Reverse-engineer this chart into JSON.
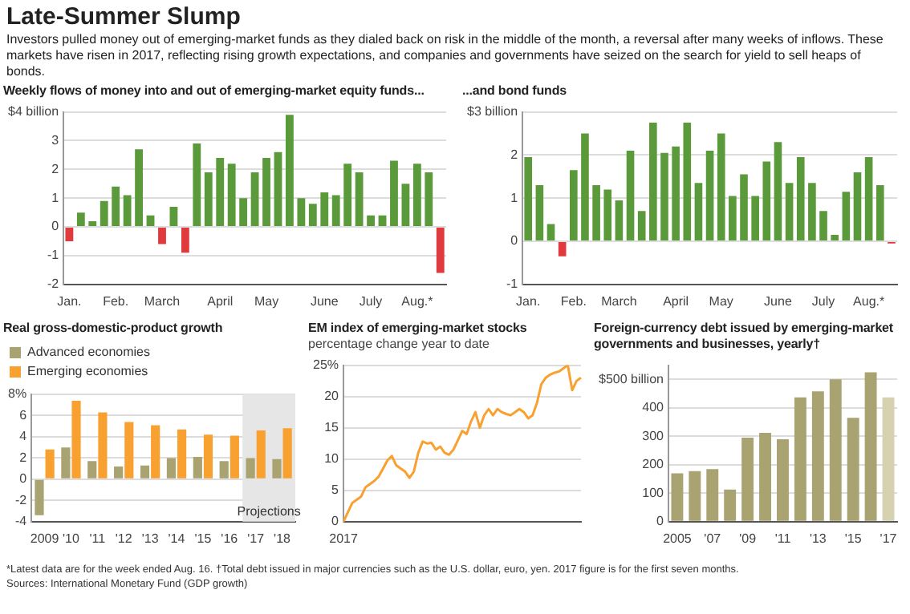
{
  "chart_data": [
    {
      "type": "other",
      "title": "Late-Summer Slump",
      "subtitle": "Investors pulled money out of emerging-market funds as they dialed back on risk in the middle of the month, a reversal after many weeks of inflows. These markets have risen in 2017, reflecting rising growth expectations, and companies and governments have seized on the search for yield to sell heaps of bonds.",
      "annotations": [
        "*Latest data are for the week ended Aug. 16.   †Total debt issued in major currencies such as the U.S. dollar, euro, yen. 2017 figure is for the first seven months.",
        "Sources: International Monetary Fund (GDP growth)"
      ]
    },
    {
      "type": "bar",
      "title": "Weekly flows of money into and out of emerging-market equity funds...",
      "categories": [
        "Jan.",
        null,
        null,
        null,
        "Feb.",
        null,
        null,
        null,
        "March",
        null,
        null,
        null,
        null,
        "April",
        null,
        null,
        null,
        "May",
        null,
        null,
        null,
        null,
        "June",
        null,
        null,
        null,
        "July",
        null,
        null,
        null,
        "Aug.*",
        null,
        null
      ],
      "values": [
        -0.5,
        0.5,
        0.2,
        0.9,
        1.4,
        1.1,
        2.7,
        0.4,
        -0.6,
        0.7,
        -0.9,
        2.9,
        1.9,
        2.4,
        2.2,
        1.0,
        1.9,
        2.4,
        2.6,
        3.9,
        1.0,
        0.8,
        1.2,
        1.1,
        2.2,
        1.9,
        0.4,
        0.4,
        2.3,
        1.5,
        2.2,
        1.9,
        -1.6
      ],
      "colors": [
        "#e0393e",
        "#5b9a3a",
        "#5b9a3a",
        "#5b9a3a",
        "#5b9a3a",
        "#5b9a3a",
        "#5b9a3a",
        "#5b9a3a",
        "#e0393e",
        "#5b9a3a",
        "#e0393e",
        "#5b9a3a",
        "#5b9a3a",
        "#5b9a3a",
        "#5b9a3a",
        "#5b9a3a",
        "#5b9a3a",
        "#5b9a3a",
        "#5b9a3a",
        "#5b9a3a",
        "#5b9a3a",
        "#5b9a3a",
        "#5b9a3a",
        "#5b9a3a",
        "#5b9a3a",
        "#5b9a3a",
        "#5b9a3a",
        "#5b9a3a",
        "#5b9a3a",
        "#5b9a3a",
        "#5b9a3a",
        "#5b9a3a",
        "#e0393e"
      ],
      "ylim": [
        -2,
        4
      ],
      "yticks": [
        -2,
        -1,
        0,
        1,
        2,
        3,
        {
          "value": 4,
          "label": "$4 billion"
        }
      ],
      "grid": "y"
    },
    {
      "type": "bar",
      "title": "...and bond funds",
      "categories": [
        "Jan.",
        null,
        null,
        null,
        "Feb.",
        null,
        null,
        null,
        "March",
        null,
        null,
        null,
        null,
        "April",
        null,
        null,
        null,
        "May",
        null,
        null,
        null,
        null,
        "June",
        null,
        null,
        null,
        "July",
        null,
        null,
        null,
        "Aug.*",
        null,
        null
      ],
      "values": [
        1.95,
        1.3,
        0.4,
        -0.35,
        1.65,
        2.5,
        1.3,
        1.2,
        0.95,
        2.1,
        0.7,
        2.75,
        2.05,
        2.2,
        2.75,
        1.35,
        2.1,
        2.5,
        1.05,
        1.55,
        1.05,
        1.85,
        2.3,
        1.35,
        1.95,
        1.35,
        0.7,
        0.15,
        1.15,
        1.6,
        1.95,
        1.3,
        -0.05
      ],
      "colors": [
        "#5b9a3a",
        "#5b9a3a",
        "#5b9a3a",
        "#e0393e",
        "#5b9a3a",
        "#5b9a3a",
        "#5b9a3a",
        "#5b9a3a",
        "#5b9a3a",
        "#5b9a3a",
        "#5b9a3a",
        "#5b9a3a",
        "#5b9a3a",
        "#5b9a3a",
        "#5b9a3a",
        "#5b9a3a",
        "#5b9a3a",
        "#5b9a3a",
        "#5b9a3a",
        "#5b9a3a",
        "#5b9a3a",
        "#5b9a3a",
        "#5b9a3a",
        "#5b9a3a",
        "#5b9a3a",
        "#5b9a3a",
        "#5b9a3a",
        "#5b9a3a",
        "#5b9a3a",
        "#5b9a3a",
        "#5b9a3a",
        "#5b9a3a",
        "#e0393e"
      ],
      "ylim": [
        -1,
        3
      ],
      "yticks": [
        -1,
        0,
        1,
        2,
        {
          "value": 3,
          "label": "$3 billion"
        }
      ],
      "grid": "y"
    },
    {
      "type": "bar",
      "title": "Real gross-domestic-product growth",
      "categories": [
        "2009",
        "'10",
        "'11",
        "'12",
        "'13",
        "'14",
        "'15",
        "'16",
        "'17",
        "'18"
      ],
      "series": [
        {
          "name": "Advanced economies",
          "color": "#a9a271",
          "values": [
            -3.4,
            3.0,
            1.7,
            1.2,
            1.3,
            2.0,
            2.1,
            1.7,
            2.0,
            1.9
          ]
        },
        {
          "name": "Emerging economies",
          "color": "#f8a131",
          "values": [
            2.8,
            7.4,
            6.3,
            5.4,
            5.1,
            4.7,
            4.2,
            4.1,
            4.6,
            4.8
          ]
        }
      ],
      "ylim": [
        -4,
        8
      ],
      "yticks": [
        -4,
        -2,
        0,
        2,
        4,
        6,
        {
          "value": 8,
          "label": "8%"
        }
      ],
      "grid": "y",
      "legend": "top left",
      "bands": [
        {
          "axis": "x",
          "from": "'17",
          "to": "'18",
          "label": "Projections",
          "color": "#e6e6e6"
        }
      ]
    },
    {
      "type": "line",
      "title": "EM index of emerging-market stocks",
      "subtitle": "percentage change year to date",
      "categories": [
        "2017",
        null,
        null,
        null,
        null,
        null,
        null,
        null,
        null,
        null,
        null,
        null,
        null,
        null,
        null,
        null,
        null,
        null,
        null,
        null,
        null,
        null,
        null,
        null,
        null,
        null,
        null,
        null,
        null,
        null,
        null,
        null,
        null,
        null,
        null,
        null,
        null,
        null,
        null,
        null,
        null,
        null,
        null,
        null,
        null,
        null,
        null,
        null,
        null,
        null,
        null,
        null,
        null,
        null,
        null
      ],
      "series": [
        {
          "color": "#f8a131",
          "values": [
            0,
            1.5,
            3,
            3.5,
            4,
            5.5,
            6,
            6.5,
            7.2,
            8.5,
            9.8,
            10.5,
            9,
            8.5,
            8,
            7,
            8,
            11,
            12.8,
            12.5,
            12.6,
            11.5,
            12,
            11,
            10.7,
            11.5,
            13,
            14.5,
            14,
            16,
            17.5,
            15,
            17,
            18,
            17,
            18,
            17.5,
            17.2,
            17,
            17.5,
            18,
            17.5,
            16.5,
            17,
            19,
            22,
            23,
            23.5,
            23.8,
            24,
            24.5,
            25,
            21,
            22.5,
            23
          ]
        }
      ],
      "ylim": [
        0,
        25
      ],
      "yticks": [
        0,
        5,
        10,
        15,
        20,
        {
          "value": 25,
          "label": "25%"
        }
      ],
      "grid": "y",
      "marker": "none",
      "line_style": "solid"
    },
    {
      "type": "bar",
      "title": "Foreign-currency debt issued by emerging-market governments and businesses, yearly†",
      "categories": [
        "2005",
        null,
        "'07",
        null,
        "'09",
        null,
        "'11",
        null,
        "'13",
        null,
        "'15",
        null,
        "'17"
      ],
      "values": [
        170,
        178,
        185,
        113,
        295,
        312,
        290,
        437,
        458,
        500,
        365,
        525,
        437
      ],
      "colors": [
        "#a9a271",
        "#a9a271",
        "#a9a271",
        "#a9a271",
        "#a9a271",
        "#a9a271",
        "#a9a271",
        "#a9a271",
        "#a9a271",
        "#a9a271",
        "#a9a271",
        "#a9a271",
        "#d6d1b1"
      ],
      "ylim": [
        0,
        550
      ],
      "yticks": [
        0,
        100,
        200,
        300,
        400,
        {
          "value": 500,
          "label": "$500 billion"
        }
      ],
      "grid": "y"
    }
  ]
}
